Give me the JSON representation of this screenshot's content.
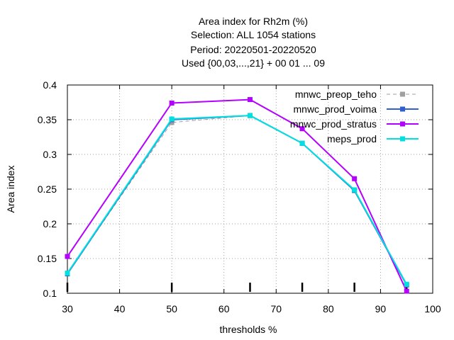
{
  "chart_data": {
    "type": "line",
    "title_lines": [
      "Area index  for Rh2m (%)",
      "Selection: ALL    1054 stations",
      "Period: 20220501-20220520",
      "Used {00,03,...,21} + 00 01 ... 09"
    ],
    "xlabel": "thresholds %",
    "ylabel": "Area index",
    "xlim": [
      30,
      100
    ],
    "ylim": [
      0.1,
      0.4
    ],
    "xticks": [
      30,
      40,
      50,
      60,
      70,
      80,
      90,
      100
    ],
    "yticks": [
      0.1,
      0.15,
      0.2,
      0.25,
      0.3,
      0.35,
      0.4
    ],
    "ytick_labels": [
      "0.1",
      "0.15",
      "0.2",
      "0.25",
      "0.3",
      "0.35",
      "0.4"
    ],
    "grid": true,
    "legend_position": "top-right",
    "threshold_marks": [
      30,
      50,
      65,
      75,
      85,
      95
    ],
    "x": [
      30,
      50,
      65,
      75,
      85,
      95
    ],
    "series": [
      {
        "name": "mnwc_preop_teho",
        "color": "#a0a0a0",
        "dashed": true,
        "values": [
          0.128,
          0.346,
          0.356,
          0.316,
          0.248,
          0.112
        ]
      },
      {
        "name": "mnwc_prod_voima",
        "color": "#3060cf",
        "dashed": false,
        "values": [
          0.128,
          0.35,
          0.356,
          0.316,
          0.248,
          0.112
        ]
      },
      {
        "name": "mnwc_prod_stratus",
        "color": "#b400ff",
        "dashed": false,
        "values": [
          0.153,
          0.374,
          0.379,
          0.337,
          0.265,
          0.103
        ]
      },
      {
        "name": "meps_prod",
        "color": "#00e0e0",
        "dashed": false,
        "values": [
          0.129,
          0.351,
          0.356,
          0.316,
          0.249,
          0.113
        ]
      }
    ]
  }
}
